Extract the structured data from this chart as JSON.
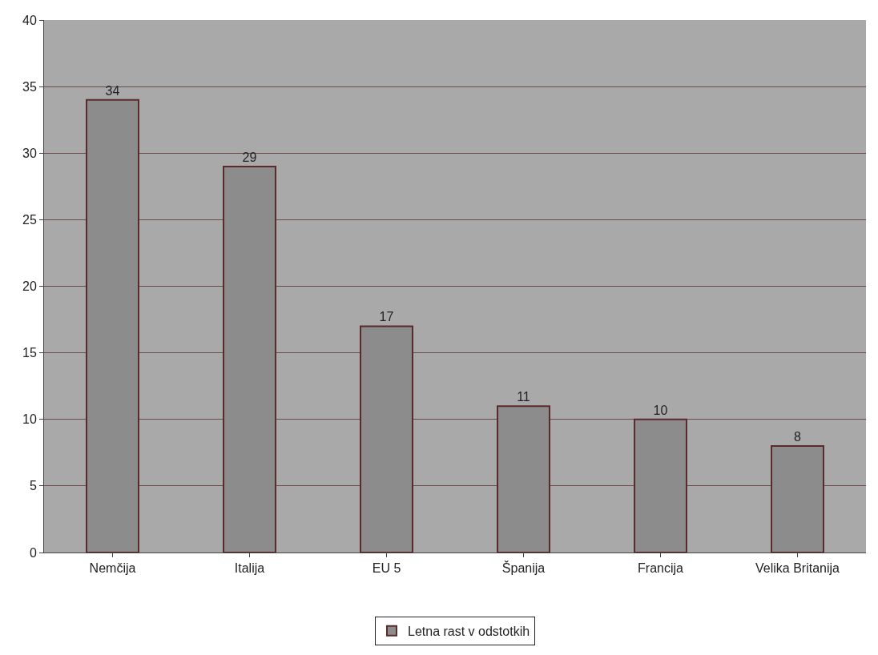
{
  "chart_data": {
    "type": "bar",
    "categories": [
      "Nemčija",
      "Italija",
      "EU 5",
      "Španija",
      "Francija",
      "Velika Britanija"
    ],
    "series": [
      {
        "name": "Letna rast v odstotkih",
        "color": "#8c8c8c",
        "values": [
          34,
          29,
          17,
          11,
          10,
          8
        ]
      }
    ],
    "ylim": [
      0,
      40
    ],
    "yticks": [
      0,
      5,
      10,
      15,
      20,
      25,
      30,
      35,
      40
    ],
    "grid": "y",
    "legend": "bottom",
    "data_labels": true
  }
}
